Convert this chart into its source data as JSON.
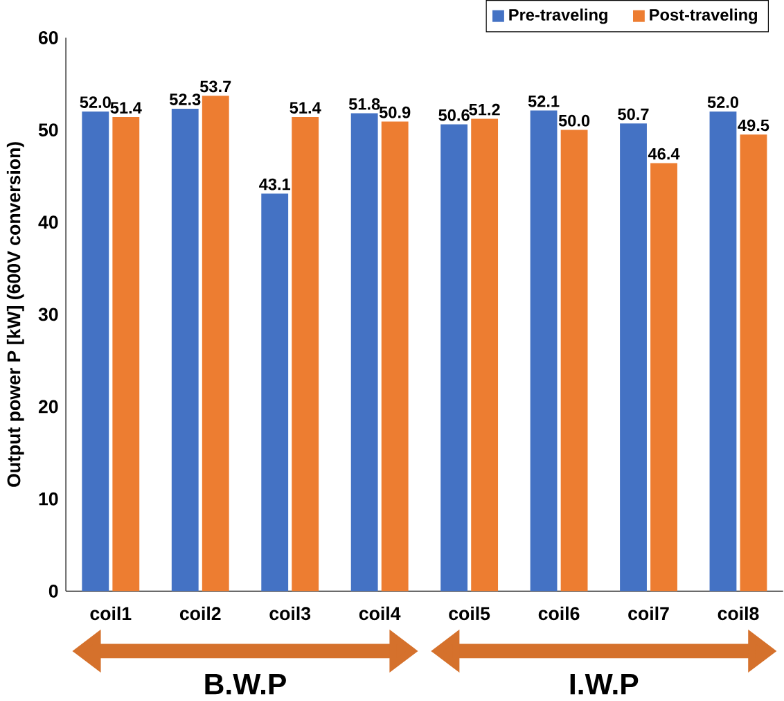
{
  "chart_data": {
    "type": "bar",
    "ylabel": "Output power P [kW] (600V conversion)",
    "categories": [
      "coil1",
      "coil2",
      "coil3",
      "coil4",
      "coil5",
      "coil6",
      "coil7",
      "coil8"
    ],
    "series": [
      {
        "name": "Pre-traveling",
        "color": "#4472c4",
        "values": [
          52.0,
          52.3,
          43.1,
          51.8,
          50.6,
          52.1,
          50.7,
          52.0
        ],
        "value_labels": [
          "52.0",
          "52.3",
          "43.1",
          "51.8",
          "50.6",
          "52.1",
          "50.7",
          "52.0"
        ]
      },
      {
        "name": "Post-traveling",
        "color": "#ed7d31",
        "values": [
          51.4,
          53.7,
          51.4,
          50.9,
          51.2,
          50.0,
          46.4,
          49.5
        ],
        "value_labels": [
          "51.4",
          "53.7",
          "51.4",
          "50.9",
          "51.2",
          "50.0",
          "46.4",
          "49.5"
        ]
      }
    ],
    "ylim": [
      0,
      60
    ],
    "yticks": [
      0,
      10,
      20,
      30,
      40,
      50,
      60
    ],
    "legend": "top right",
    "grid": false,
    "annotations": [
      "B.W.P",
      "I.W.P"
    ]
  }
}
